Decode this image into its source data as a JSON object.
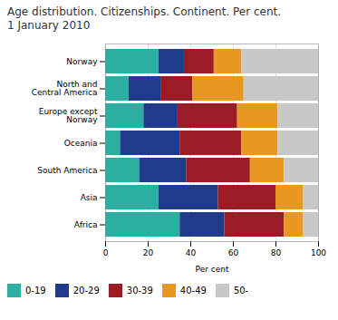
{
  "chart_data": {
    "type": "bar",
    "orientation": "horizontal",
    "stacked": true,
    "title": "Age distribution. Citizenships. Continent. Per cent.",
    "subtitle": "1 January 2010",
    "xlabel": "Per cent",
    "categories": [
      "Norway",
      "North and\nCentral America",
      "Europe except\nNorway",
      "Oceania",
      "South America",
      "Asia",
      "Africa"
    ],
    "series": [
      {
        "name": "0-19",
        "color": "#2aafa0",
        "values": [
          25,
          11,
          18,
          7,
          16,
          25,
          35
        ]
      },
      {
        "name": "20-29",
        "color": "#1f3c8c",
        "values": [
          12,
          15,
          16,
          28,
          22,
          28,
          21
        ]
      },
      {
        "name": "30-39",
        "color": "#9b1c24",
        "values": [
          14,
          15,
          28,
          29,
          30,
          27,
          28
        ]
      },
      {
        "name": "40-49",
        "color": "#e89820",
        "values": [
          13,
          24,
          19,
          17,
          16,
          13,
          9
        ]
      },
      {
        "name": "50-",
        "color": "#c8c8c8",
        "values": [
          36,
          35,
          19,
          19,
          16,
          7,
          7
        ]
      }
    ],
    "xlim": [
      0,
      100
    ],
    "xticks": [
      0,
      20,
      40,
      60,
      80,
      100
    ],
    "grid": true,
    "legend": "bottom"
  }
}
